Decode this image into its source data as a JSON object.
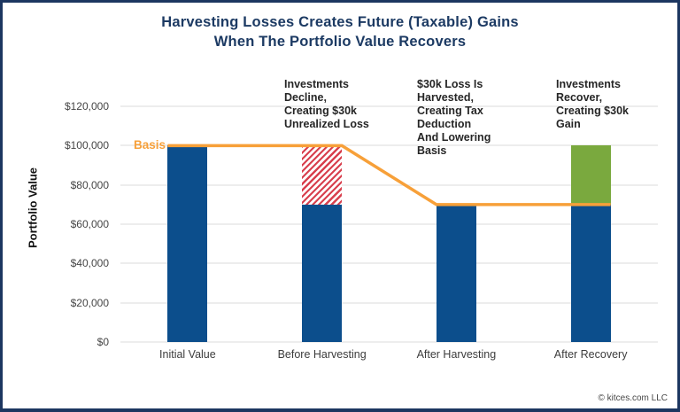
{
  "header": {
    "title_line1": "Harvesting Losses Creates Future (Taxable) Gains",
    "title_line2": "When The Portfolio Value Recovers"
  },
  "footer": {
    "copyright": "© kitces.com LLC"
  },
  "colors": {
    "frame_navy": "#1c3660",
    "title_navy": "#1c3a63",
    "bar_blue": "#0c4e8c",
    "gain_green": "#7aa93e",
    "loss_red": "#d8404e",
    "basis_orange": "#f7a039",
    "gridline_grey": "#ededed"
  },
  "chart_data": {
    "type": "bar",
    "subtype": "stacked",
    "title": "Harvesting Losses Creates Future (Taxable) Gains When The Portfolio Value Recovers",
    "xlabel": "",
    "ylabel": "Portfolio Value",
    "ylim": [
      0,
      120000
    ],
    "grid": "horizontal",
    "legend_position": "none",
    "categories": [
      "Initial Value",
      "Before Harvesting",
      "After Harvesting",
      "After Recovery"
    ],
    "series": [
      {
        "name": "Portfolio Value (blue)",
        "style": "solid-blue",
        "values": [
          100000,
          70000,
          70000,
          70000
        ]
      },
      {
        "name": "Unrealized / Harvested Loss (red hatch)",
        "style": "hatched-red",
        "values": [
          0,
          30000,
          0,
          0
        ]
      },
      {
        "name": "Recovery Gain (green)",
        "style": "solid-green",
        "values": [
          0,
          0,
          0,
          30000
        ]
      }
    ],
    "basis_line": {
      "label": "Basis",
      "values": [
        100000,
        100000,
        70000,
        70000
      ],
      "color": "#f7a039"
    },
    "yticks": [
      {
        "value": 120000,
        "label": "$120,000"
      },
      {
        "value": 100000,
        "label": "$100,000"
      },
      {
        "value": 80000,
        "label": "$80,000"
      },
      {
        "value": 60000,
        "label": "$60,000"
      },
      {
        "value": 40000,
        "label": "$40,000"
      },
      {
        "value": 20000,
        "label": "$20,000"
      },
      {
        "value": 0,
        "label": "$0"
      }
    ],
    "annotations": [
      {
        "category": "Before Harvesting",
        "text": "Investments\nDecline,\nCreating $30k\nUnrealized Loss"
      },
      {
        "category": "After Harvesting",
        "text": "$30k Loss Is\nHarvested,\nCreating Tax\nDeduction\nAnd Lowering\nBasis"
      },
      {
        "category": "After Recovery",
        "text": "Investments\nRecover,\nCreating $30k\nGain"
      }
    ]
  }
}
